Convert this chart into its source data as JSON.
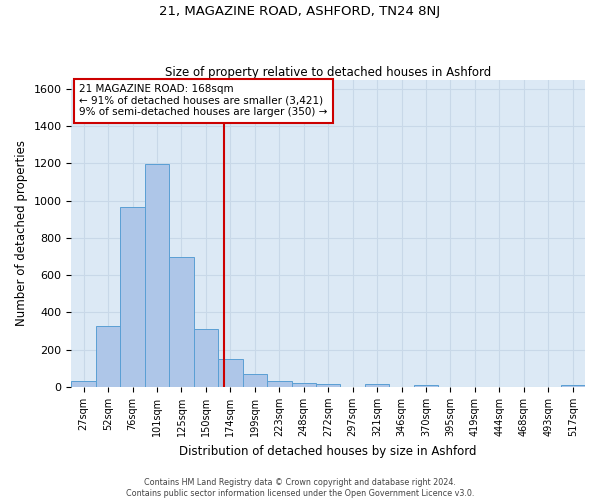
{
  "title": "21, MAGAZINE ROAD, ASHFORD, TN24 8NJ",
  "subtitle": "Size of property relative to detached houses in Ashford",
  "xlabel": "Distribution of detached houses by size in Ashford",
  "ylabel": "Number of detached properties",
  "bar_labels": [
    "27sqm",
    "52sqm",
    "76sqm",
    "101sqm",
    "125sqm",
    "150sqm",
    "174sqm",
    "199sqm",
    "223sqm",
    "248sqm",
    "272sqm",
    "297sqm",
    "321sqm",
    "346sqm",
    "370sqm",
    "395sqm",
    "419sqm",
    "444sqm",
    "468sqm",
    "493sqm",
    "517sqm"
  ],
  "bar_values": [
    30,
    325,
    965,
    1195,
    700,
    310,
    150,
    70,
    30,
    20,
    15,
    0,
    15,
    0,
    10,
    0,
    0,
    0,
    0,
    0,
    10
  ],
  "bar_color": "#aec6e8",
  "bar_edge_color": "#5a9fd4",
  "vline_x": 5.75,
  "vline_color": "#cc0000",
  "annotation_title": "21 MAGAZINE ROAD: 168sqm",
  "annotation_line1": "← 91% of detached houses are smaller (3,421)",
  "annotation_line2": "9% of semi-detached houses are larger (350) →",
  "annotation_box_color": "#cc0000",
  "ylim": [
    0,
    1650
  ],
  "yticks": [
    0,
    200,
    400,
    600,
    800,
    1000,
    1200,
    1400,
    1600
  ],
  "grid_color": "#c8d8e8",
  "background_color": "#dce9f5",
  "footer_line1": "Contains HM Land Registry data © Crown copyright and database right 2024.",
  "footer_line2": "Contains public sector information licensed under the Open Government Licence v3.0."
}
